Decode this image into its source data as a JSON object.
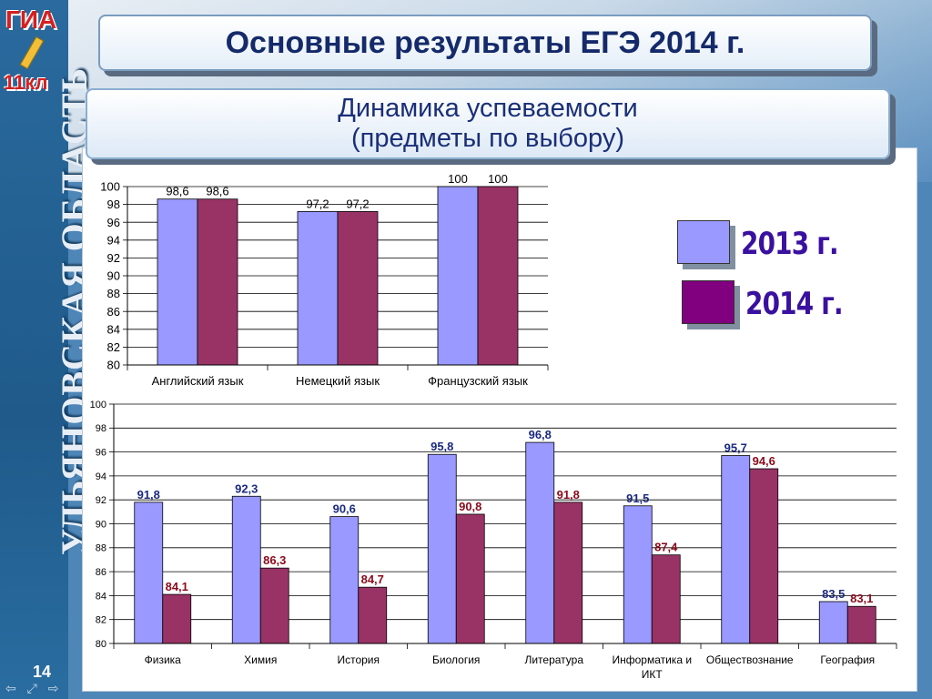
{
  "sidebar": {
    "region_text": "УЛЬЯНОВСКАЯ ОБЛАСТЬ",
    "logo_top": "ГИА",
    "logo_bottom": "11кл"
  },
  "slide_number": "14",
  "header": {
    "title": "Основные результаты ЕГЭ 2014 г.",
    "subtitle_line1": "Динамика успеваемости",
    "subtitle_line2": "(предметы по выбору)"
  },
  "legend": {
    "items": [
      {
        "label": "2013 г.",
        "color": "#9999ff"
      },
      {
        "label": "2014 г.",
        "color": "#800080"
      }
    ]
  },
  "chart_data": [
    {
      "type": "bar",
      "categories": [
        "Английский язык",
        "Немецкий язык",
        "Французский язык"
      ],
      "series": [
        {
          "name": "2013 г.",
          "values": [
            98.6,
            97.2,
            100
          ],
          "labels": [
            "98,6",
            "97,2",
            "100"
          ],
          "color": "#9999ff"
        },
        {
          "name": "2014 г.",
          "values": [
            98.6,
            97.2,
            100
          ],
          "labels": [
            "98,6",
            "97,2",
            "100"
          ],
          "color": "#993366"
        }
      ],
      "ylim": [
        80,
        100
      ],
      "yticks": [
        "80",
        "82",
        "84",
        "86",
        "88",
        "90",
        "92",
        "94",
        "96",
        "98",
        "100"
      ],
      "grid": true
    },
    {
      "type": "bar",
      "categories": [
        "Физика",
        "Химия",
        "История",
        "Биология",
        "Литература",
        "Информатика и ИКТ",
        "Обществознание",
        "География"
      ],
      "category_lines": [
        [
          "Физика"
        ],
        [
          "Химия"
        ],
        [
          "История"
        ],
        [
          "Биология"
        ],
        [
          "Литература"
        ],
        [
          "Информатика и",
          "ИКТ"
        ],
        [
          "Обществознание"
        ],
        [
          "География"
        ]
      ],
      "series": [
        {
          "name": "2013 г.",
          "values": [
            91.8,
            92.3,
            90.6,
            95.8,
            96.8,
            91.5,
            95.7,
            83.5
          ],
          "labels": [
            "91,8",
            "92,3",
            "90,6",
            "95,8",
            "96,8",
            "91,5",
            "95,7",
            "83,5"
          ],
          "color": "#9999ff",
          "label_color": "#1a2a80"
        },
        {
          "name": "2014 г.",
          "values": [
            84.1,
            86.3,
            84.7,
            90.8,
            91.8,
            87.4,
            94.6,
            83.1
          ],
          "labels": [
            "84,1",
            "86,3",
            "84,7",
            "90,8",
            "91,8",
            "87,4",
            "94,6",
            "83,1"
          ],
          "color": "#993366",
          "label_color": "#8b0a1a"
        }
      ],
      "ylim": [
        80,
        100
      ],
      "yticks": [
        "80",
        "82",
        "84",
        "86",
        "88",
        "90",
        "92",
        "94",
        "96",
        "98",
        "100"
      ],
      "grid": true
    }
  ]
}
